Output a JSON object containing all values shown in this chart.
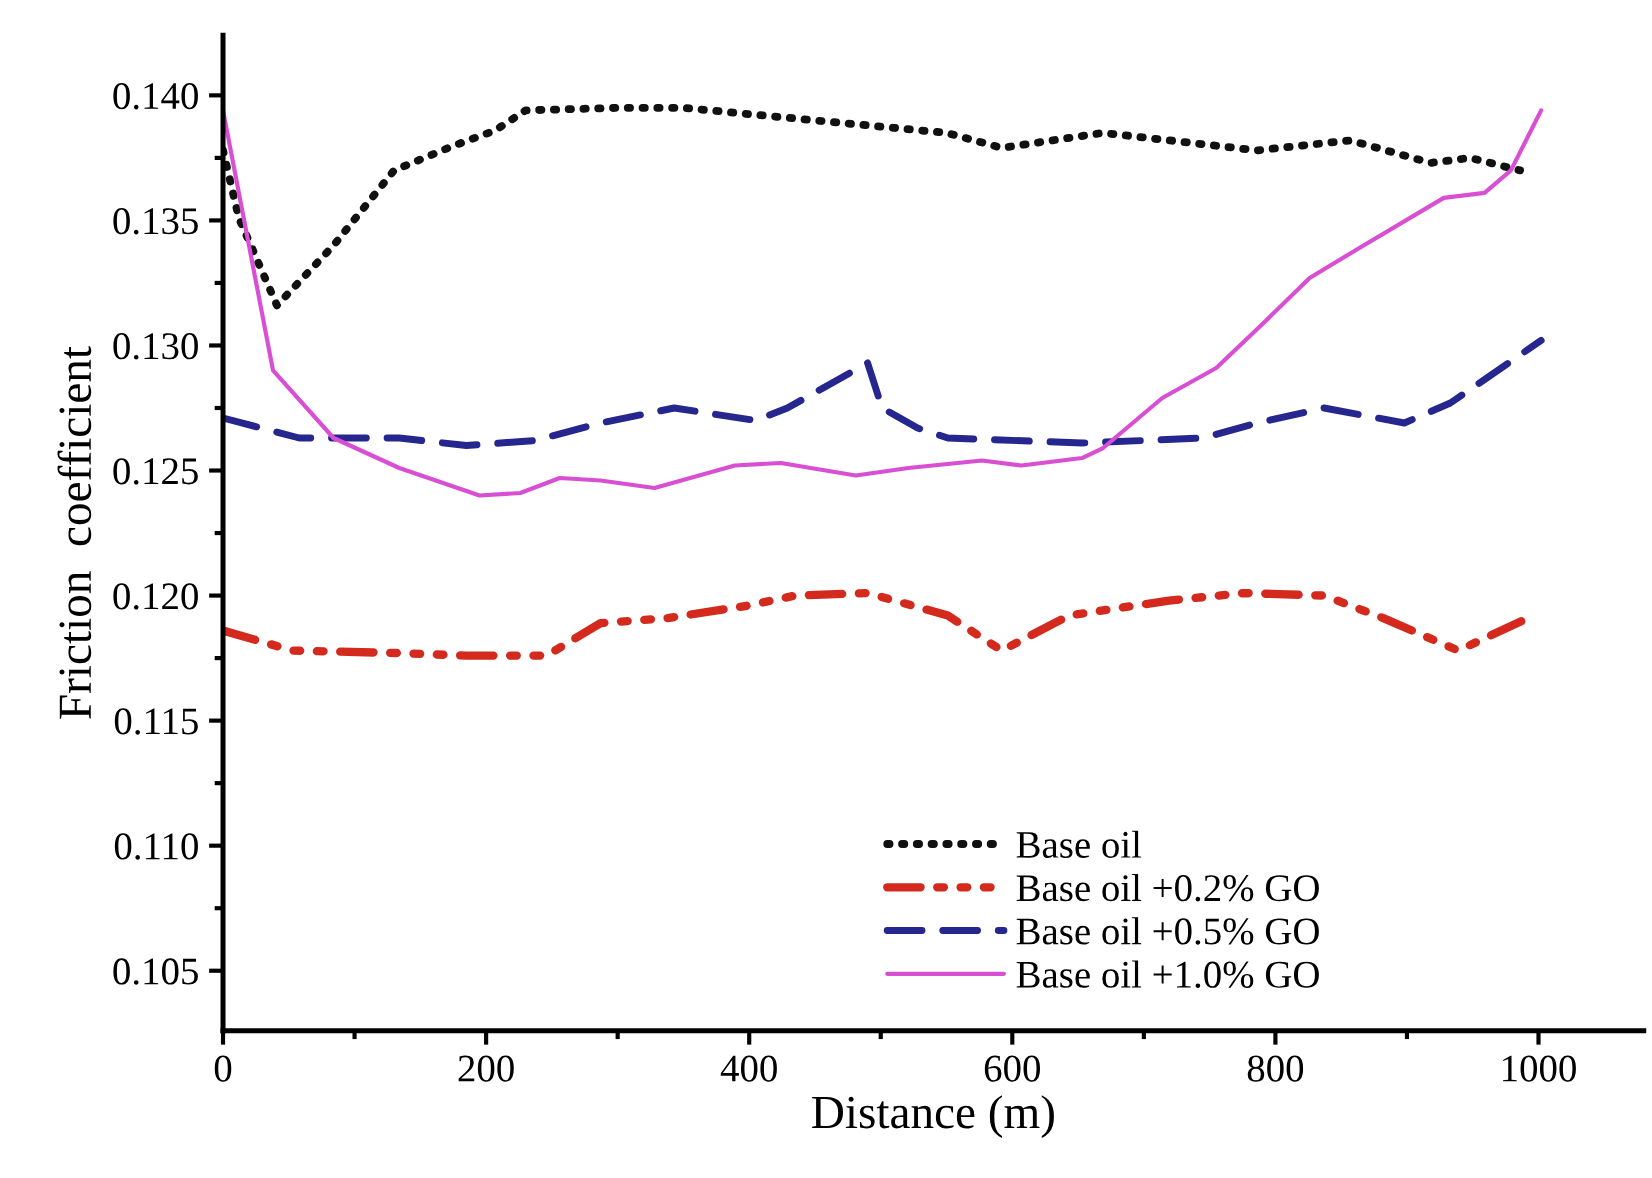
{
  "chart_data": {
    "type": "line",
    "xlabel": "Distance (m)",
    "ylabel": "Friction  coefficient",
    "xlim": [
      0,
      1080
    ],
    "xticks": [
      0,
      200,
      400,
      600,
      800,
      1000
    ],
    "ylim": [
      0.1026,
      0.1424
    ],
    "yticks": [
      0.105,
      {
        "value": 0.11,
        "label": "0.110"
      },
      0.115,
      {
        "value": 0.12,
        "label": "0.120"
      },
      0.125,
      {
        "value": 0.13,
        "label": "0.130"
      },
      0.135,
      {
        "value": 0.14,
        "label": "0.140"
      }
    ],
    "grid": false,
    "legend": "bottom",
    "marker": "none",
    "series": [
      {
        "name": "Base oil",
        "color": "#111111",
        "line_style": "dotted",
        "x": [
          0,
          12,
          41,
          84,
          130,
          176,
          207,
          230,
          300,
          350,
          450,
          550,
          592,
          669,
          786,
          857,
          918,
          948,
          986
        ],
        "values": [
          0.1378,
          0.1351,
          0.1316,
          0.134,
          0.137,
          0.138,
          0.1386,
          0.1394,
          0.1395,
          0.1395,
          0.139,
          0.1385,
          0.1379,
          0.1385,
          0.1378,
          0.1382,
          0.1373,
          0.1375,
          0.137
        ]
      },
      {
        "name": "Base oil +0.2% GO",
        "color": "#d42a1e",
        "line_style": "dashdot",
        "x": [
          0,
          53,
          134,
          185,
          246,
          287,
          338,
          399,
          435,
          490,
          551,
          592,
          643,
          719,
          776,
          837,
          882,
          939,
          992
        ],
        "values": [
          0.1186,
          0.1178,
          0.1177,
          0.1176,
          0.1176,
          0.1189,
          0.1191,
          0.1196,
          0.12,
          0.1201,
          0.1192,
          0.1178,
          0.1192,
          0.1198,
          0.1201,
          0.12,
          0.1191,
          0.1178,
          0.1191
        ]
      },
      {
        "name": "Base oil +0.5% GO",
        "color": "#26268f",
        "line_style": "dashed",
        "x": [
          0,
          58,
          134,
          185,
          237,
          287,
          343,
          405,
          429,
          490,
          501,
          528,
          551,
          653,
          745,
          786,
          837,
          898,
          933,
          1002
        ],
        "values": [
          0.1271,
          0.1263,
          0.1263,
          0.126,
          0.1262,
          0.1269,
          0.1275,
          0.127,
          0.1275,
          0.1293,
          0.1275,
          0.1267,
          0.1263,
          0.1261,
          0.1263,
          0.1269,
          0.1275,
          0.1269,
          0.1277,
          0.1302
        ]
      },
      {
        "name": "Base oil +1.0% GO",
        "color": "#d94fd4",
        "line_style": "solid",
        "x": [
          0,
          38,
          84,
          134,
          195,
          226,
          256,
          287,
          328,
          389,
          424,
          481,
          521,
          577,
          607,
          653,
          669,
          714,
          755,
          791,
          826,
          867,
          928,
          959,
          979,
          1002
        ],
        "values": [
          0.1394,
          0.129,
          0.1263,
          0.1251,
          0.124,
          0.1241,
          0.1247,
          0.1246,
          0.1243,
          0.1252,
          0.1253,
          0.1248,
          0.1251,
          0.1254,
          0.1252,
          0.1255,
          0.1259,
          0.1279,
          0.1291,
          0.1309,
          0.1327,
          0.134,
          0.1359,
          0.1361,
          0.137,
          0.1394
        ]
      }
    ]
  }
}
